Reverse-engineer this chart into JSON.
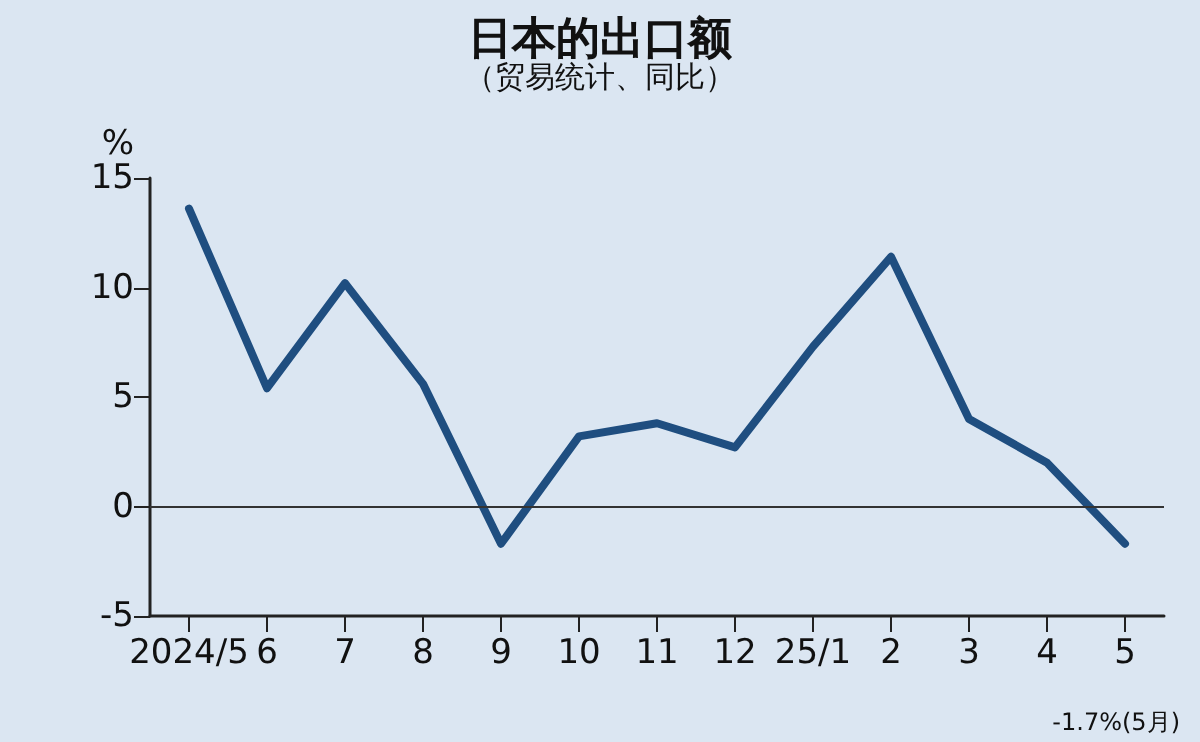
{
  "chart_data": {
    "type": "line",
    "title": "日本的出口额",
    "subtitle": "（贸易统计、同比）",
    "ylabel": "%",
    "categories": [
      "2024/5",
      "6",
      "7",
      "8",
      "9",
      "10",
      "11",
      "12",
      "25/1",
      "2",
      "3",
      "4",
      "5"
    ],
    "series": [
      {
        "color": "#1f4e80",
        "values": [
          13.6,
          5.4,
          10.2,
          5.6,
          -1.7,
          3.2,
          3.8,
          2.7,
          7.3,
          11.4,
          4.0,
          2.0,
          -1.7
        ]
      }
    ],
    "ylim": [
      -5,
      15
    ],
    "yticks": [
      -5,
      0,
      5,
      10,
      15
    ],
    "grid": false,
    "marker": "none",
    "line_style": "solid",
    "ref_lines": [
      {
        "axis": "y",
        "value": 0,
        "color": "#333333"
      }
    ],
    "annotations": [
      "-1.7%(5月)"
    ]
  }
}
